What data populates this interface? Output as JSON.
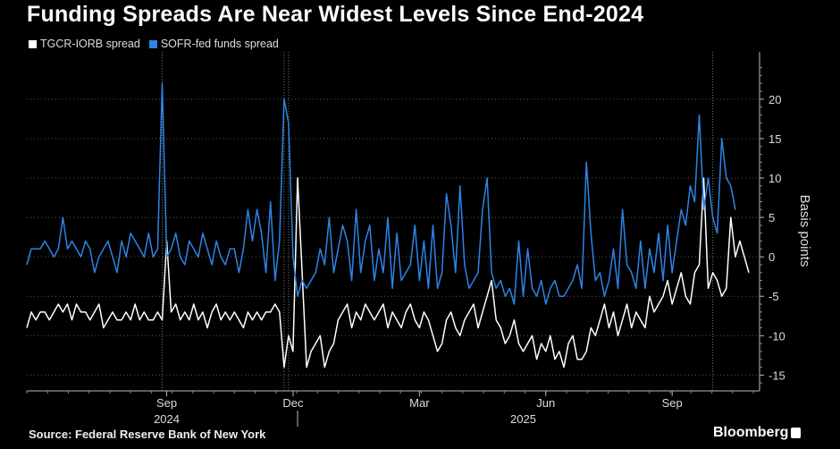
{
  "chart_data": {
    "type": "line",
    "title": "Funding Spreads Are Near Widest Levels Since End-2024",
    "ylabel": "Basis points",
    "ylim": [
      -17,
      26
    ],
    "yticks": [
      20,
      15,
      10,
      5,
      0,
      -5,
      -10,
      -15
    ],
    "xticks": [
      {
        "label": "Sep",
        "i": 31
      },
      {
        "label": "Dec",
        "i": 59
      },
      {
        "label": "Mar",
        "i": 87
      },
      {
        "label": "Jun",
        "i": 115
      },
      {
        "label": "Sep",
        "i": 143
      }
    ],
    "years": [
      {
        "label": "2024",
        "i": 31
      },
      {
        "label": "2025",
        "i": 110
      }
    ],
    "year_divider_i": 60,
    "vlines_i": [
      30,
      57,
      58,
      152
    ],
    "series": [
      {
        "name": "TGCR-IORB spread",
        "color": "#ffffff",
        "values": [
          -9,
          -7,
          -8,
          -7,
          -7,
          -8,
          -7,
          -6,
          -7,
          -6,
          -8,
          -6,
          -7,
          -7,
          -8,
          -7,
          -6,
          -9,
          -8,
          -7,
          -8,
          -8,
          -7,
          -8,
          -6,
          -8,
          -7,
          -8,
          -8,
          -7,
          -8,
          2,
          -7,
          -6,
          -8,
          -7,
          -8,
          -6,
          -8,
          -7,
          -9,
          -7,
          -6,
          -8,
          -7,
          -8,
          -7,
          -8,
          -9,
          -7,
          -8,
          -7,
          -8,
          -7,
          -7,
          -6,
          -7,
          -14,
          -10,
          -12,
          10,
          -2,
          -14,
          -12,
          -11,
          -10,
          -14,
          -12,
          -11,
          -8,
          -7,
          -6,
          -9,
          -7,
          -8,
          -6,
          -7,
          -8,
          -7,
          -6,
          -9,
          -7,
          -8,
          -9,
          -7,
          -6,
          -8,
          -9,
          -7,
          -8,
          -10,
          -12,
          -11,
          -8,
          -7,
          -9,
          -10,
          -8,
          -7,
          -6,
          -9,
          -7,
          -5,
          -3,
          -8,
          -9,
          -11,
          -10,
          -8,
          -11,
          -12,
          -11,
          -10,
          -13,
          -11,
          -12,
          -10,
          -13,
          -12,
          -14,
          -11,
          -10,
          -13,
          -13,
          -12,
          -9,
          -10,
          -8,
          -6,
          -9,
          -7,
          -10,
          -8,
          -6,
          -9,
          -7,
          -8,
          -9,
          -5,
          -7,
          -6,
          -5,
          -3,
          -6,
          -4,
          -2,
          -5,
          -6,
          -2,
          -1,
          10,
          -4,
          -2,
          -3,
          -5,
          -4,
          5,
          0,
          2,
          0,
          -2
        ]
      },
      {
        "name": "SOFR-fed funds spread",
        "color": "#2d84e6",
        "values": [
          -1,
          1,
          1,
          1,
          2,
          1,
          0,
          1,
          5,
          1,
          2,
          1,
          0,
          2,
          1,
          -2,
          0,
          1,
          2,
          0,
          -2,
          2,
          0,
          3,
          2,
          1,
          0,
          3,
          0,
          1,
          22,
          0,
          1,
          3,
          0,
          -1,
          2,
          1,
          0,
          3,
          1,
          -1,
          2,
          0,
          -1,
          1,
          1,
          -2,
          1,
          6,
          2,
          6,
          3,
          -2,
          7,
          -3,
          2,
          20,
          17,
          0,
          -5,
          -3,
          -4,
          -3,
          -2,
          1,
          -1,
          5,
          -2,
          1,
          4,
          2,
          -3,
          6,
          -2,
          2,
          4,
          -3,
          1,
          -2,
          5,
          -4,
          3,
          -3,
          -2,
          -1,
          4,
          -3,
          2,
          -4,
          4,
          -4,
          -2,
          8,
          4,
          -2,
          9,
          -1,
          -4,
          -3,
          -2,
          6,
          10,
          -2,
          -4,
          -3,
          -5,
          -4,
          -6,
          2,
          -5,
          1,
          -4,
          -5,
          -3,
          -6,
          -4,
          -3,
          -5,
          -5,
          -4,
          -3,
          -1,
          -4,
          12,
          3,
          -3,
          -2,
          -5,
          -3,
          1,
          -4,
          6,
          -1,
          -2,
          -4,
          2,
          -4,
          1,
          -2,
          3,
          -3,
          4,
          -2,
          2,
          6,
          4,
          9,
          7,
          18,
          6,
          10,
          5,
          3,
          15,
          10,
          9,
          6
        ]
      }
    ]
  },
  "legend": {
    "item1": "TGCR-IORB spread",
    "item2": "SOFR-fed funds spread",
    "color1": "#ffffff",
    "color2": "#2d84e6"
  },
  "source": "Source: Federal Reserve Bank of New York",
  "brand": "Bloomberg"
}
